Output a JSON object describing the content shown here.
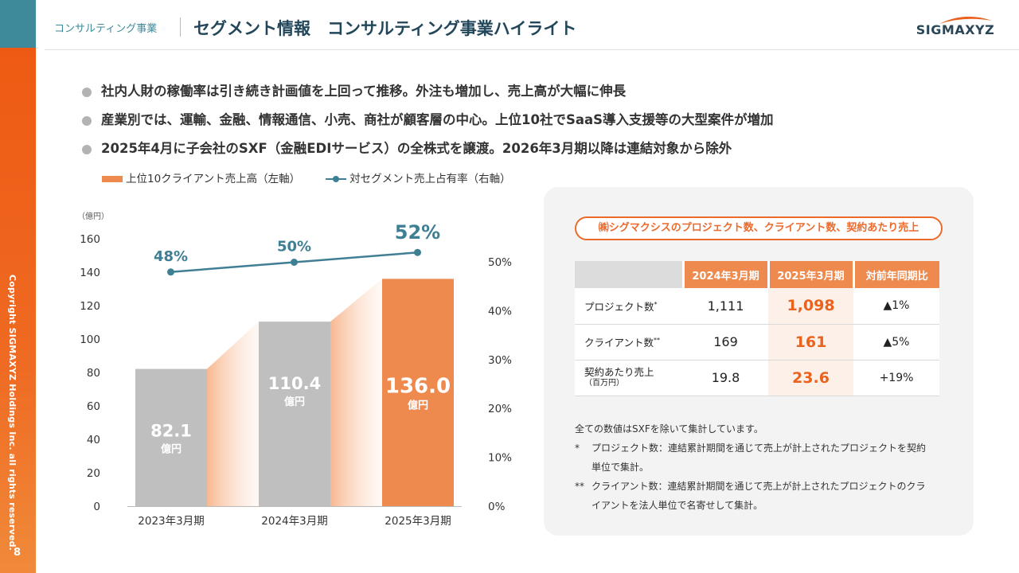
{
  "header": {
    "subtitle": "コンサルティング事業",
    "title": "セグメント情報　コンサルティング事業ハイライト",
    "logo": "SIGMAXYZ"
  },
  "sidebar": {
    "copyright": "Copyright SIGMAXYZ Holdings Inc. all rights reserved.",
    "page_number": "8"
  },
  "bullets": [
    "社内人財の稼働率は引き続き計画値を上回って推移。外注も増加し、売上高が大幅に伸長",
    "産業別では、運輸、金融、情報通信、小売、商社が顧客層の中心。上位10社でSaaS導入支援等の大型案件が増加",
    "2025年4月に子会社のSXF（金融EDIサービス）の全株式を譲渡。2026年3月期以降は連結対象から除外"
  ],
  "legend": {
    "bar": "上位10クライアント売上高（左軸）",
    "line": "対セグメント売上占有率（右軸）"
  },
  "chart_data": {
    "type": "bar",
    "categories": [
      "2023年3月期",
      "2024年3月期",
      "2025年3月期"
    ],
    "series": [
      {
        "name": "上位10クライアント売上高（左軸）",
        "axis": "left",
        "type": "bar",
        "values": [
          82.1,
          110.4,
          136.0
        ],
        "labels": [
          "82.1",
          "110.4",
          "136.0"
        ],
        "unit": "億円"
      },
      {
        "name": "対セグメント売上占有率（右軸）",
        "axis": "right",
        "type": "line",
        "values": [
          48,
          50,
          52
        ],
        "labels": [
          "48%",
          "50%",
          "52%"
        ]
      }
    ],
    "yunit": "（億円）",
    "ylim": [
      0,
      160
    ],
    "yticks": [
      "0",
      "20",
      "40",
      "60",
      "80",
      "100",
      "120",
      "140",
      "160"
    ],
    "y2lim": [
      0,
      50
    ],
    "y2ticks": [
      "0%",
      "10%",
      "20%",
      "30%",
      "40%",
      "50%"
    ],
    "colors": {
      "bar_old": "#bfbfbf",
      "bar_new": "#ef8a4f",
      "line": "#3f7f94",
      "label_old": "#ffffff",
      "label_new": "#ffffff"
    }
  },
  "kpi": {
    "title": "㈱シグマクシスのプロジェクト数、クライアント数、契約あたり売上",
    "headers": [
      "2024年3月期",
      "2025年3月期",
      "対前年同期比"
    ],
    "rows": [
      {
        "label": "プロジェクト数",
        "mark": "*",
        "sub": "",
        "v2024": "1,111",
        "v2025": "1,098",
        "change": "▲1%"
      },
      {
        "label": "クライアント数",
        "mark": "**",
        "sub": "",
        "v2024": "169",
        "v2025": "161",
        "change": "▲5%"
      },
      {
        "label": "契約あたり売上",
        "mark": "",
        "sub": "（百万円）",
        "v2024": "19.8",
        "v2025": "23.6",
        "change": "+19%"
      }
    ]
  },
  "notes": {
    "main": "全ての数値はSXFを除いて集計しています。",
    "n1_mark": "*",
    "n1_line1": "プロジェクト数：連結累計期間を通じて売上が計上されたプロジェクトを契約",
    "n1_line2": "単位で集計。",
    "n2_mark": "**",
    "n2_line1": "クライアント数：連結累計期間を通じて売上が計上されたプロジェクトのクラ",
    "n2_line2": "イアントを法人単位で名寄せして集計。"
  },
  "colors": {
    "accent": "#ec6a2c",
    "teal": "#3f8a9a",
    "navy": "#23475a"
  }
}
